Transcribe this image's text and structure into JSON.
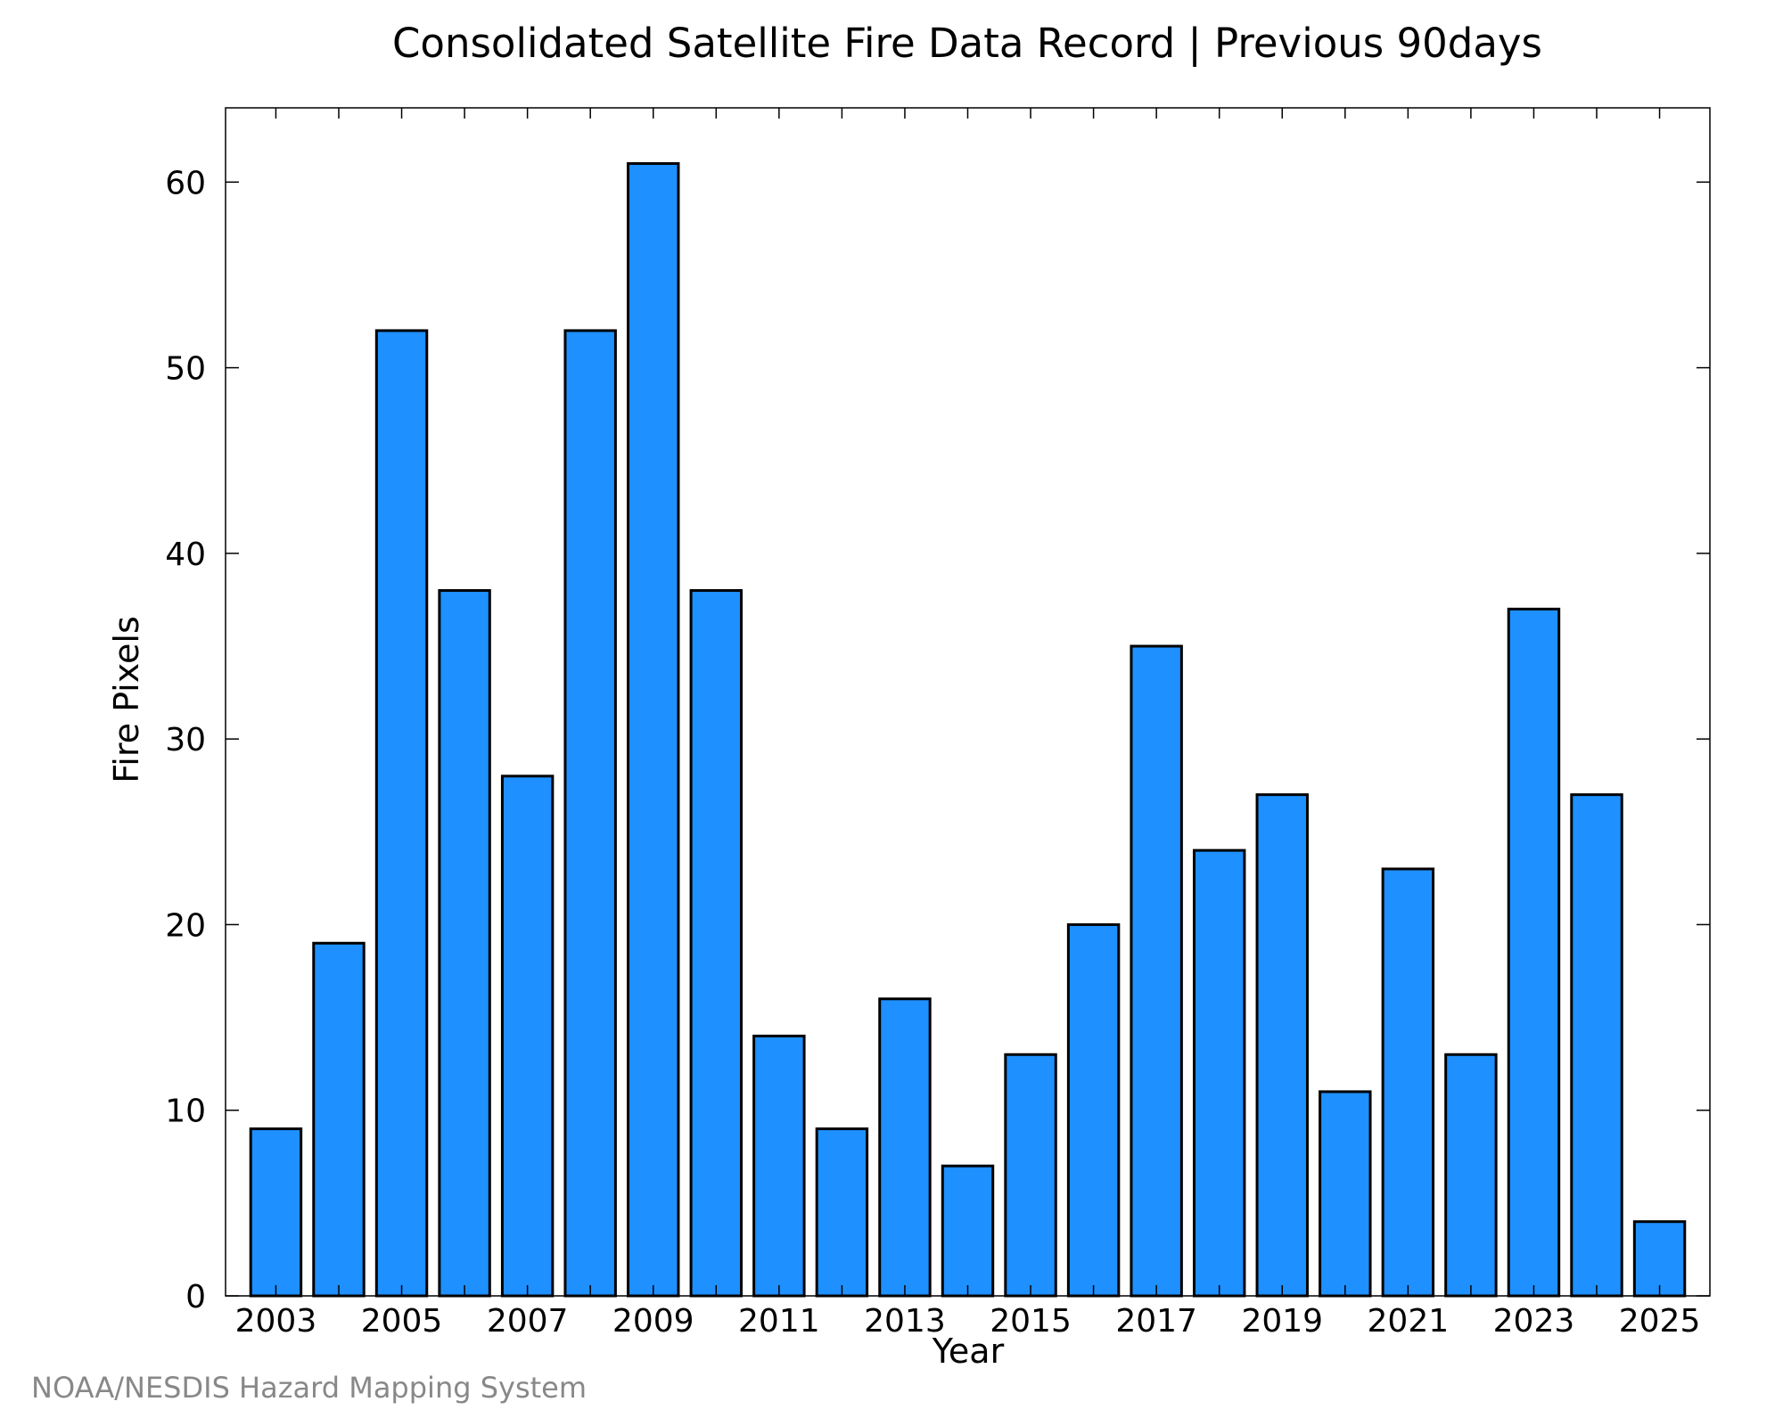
{
  "chart_data": {
    "type": "bar",
    "title": "Consolidated Satellite Fire Data Record | Previous 90days",
    "xlabel": "Year",
    "ylabel": "Fire Pixels",
    "categories": [
      "2003",
      "2004",
      "2005",
      "2006",
      "2007",
      "2008",
      "2009",
      "2010",
      "2011",
      "2012",
      "2013",
      "2014",
      "2015",
      "2016",
      "2017",
      "2018",
      "2019",
      "2020",
      "2021",
      "2022",
      "2023",
      "2024",
      "2025"
    ],
    "values": [
      9,
      19,
      52,
      38,
      28,
      52,
      61,
      38,
      14,
      9,
      16,
      7,
      13,
      20,
      35,
      24,
      27,
      11,
      23,
      13,
      37,
      27,
      4
    ],
    "x_tick_labels": [
      "2003",
      "2005",
      "2007",
      "2009",
      "2011",
      "2013",
      "2015",
      "2017",
      "2019",
      "2021",
      "2023",
      "2025"
    ],
    "y_ticks": [
      0,
      10,
      20,
      30,
      40,
      50,
      60
    ],
    "ylim": [
      0,
      64
    ],
    "xlim": [
      2002.2,
      2025.8
    ],
    "grid": false,
    "legend": "none",
    "bar_color": "#1e90ff",
    "bar_edge_color": "#000000"
  },
  "footer": {
    "credit": "NOAA/NESDIS Hazard Mapping System"
  }
}
